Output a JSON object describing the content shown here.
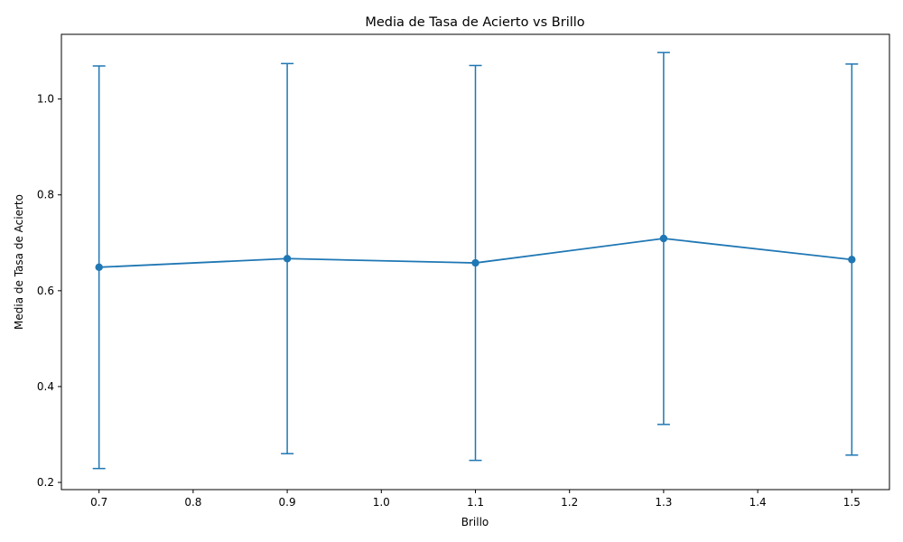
{
  "chart_data": {
    "type": "line",
    "title": "Media de Tasa de Acierto vs Brillo",
    "xlabel": "Brillo",
    "ylabel": "Media de Tasa de Acierto",
    "xlim": [
      0.66,
      1.54
    ],
    "ylim": [
      0.185,
      1.135
    ],
    "x_ticks": [
      0.7,
      0.8,
      0.9,
      1.0,
      1.1,
      1.2,
      1.3,
      1.4,
      1.5
    ],
    "x_tick_labels": [
      "0.7",
      "0.8",
      "0.9",
      "1.0",
      "1.1",
      "1.2",
      "1.3",
      "1.4",
      "1.5"
    ],
    "y_ticks": [
      0.2,
      0.4,
      0.6,
      0.8,
      1.0
    ],
    "y_tick_labels": [
      "0.2",
      "0.4",
      "0.6",
      "0.8",
      "1.0"
    ],
    "grid": false,
    "series": [
      {
        "color": "#1f77b4",
        "x": [
          0.7,
          0.9,
          1.1,
          1.3,
          1.5
        ],
        "y": [
          0.649,
          0.667,
          0.658,
          0.709,
          0.665
        ],
        "err_low": [
          0.229,
          0.26,
          0.246,
          0.321,
          0.257
        ],
        "err_high": [
          1.069,
          1.074,
          1.07,
          1.097,
          1.073
        ]
      }
    ]
  }
}
